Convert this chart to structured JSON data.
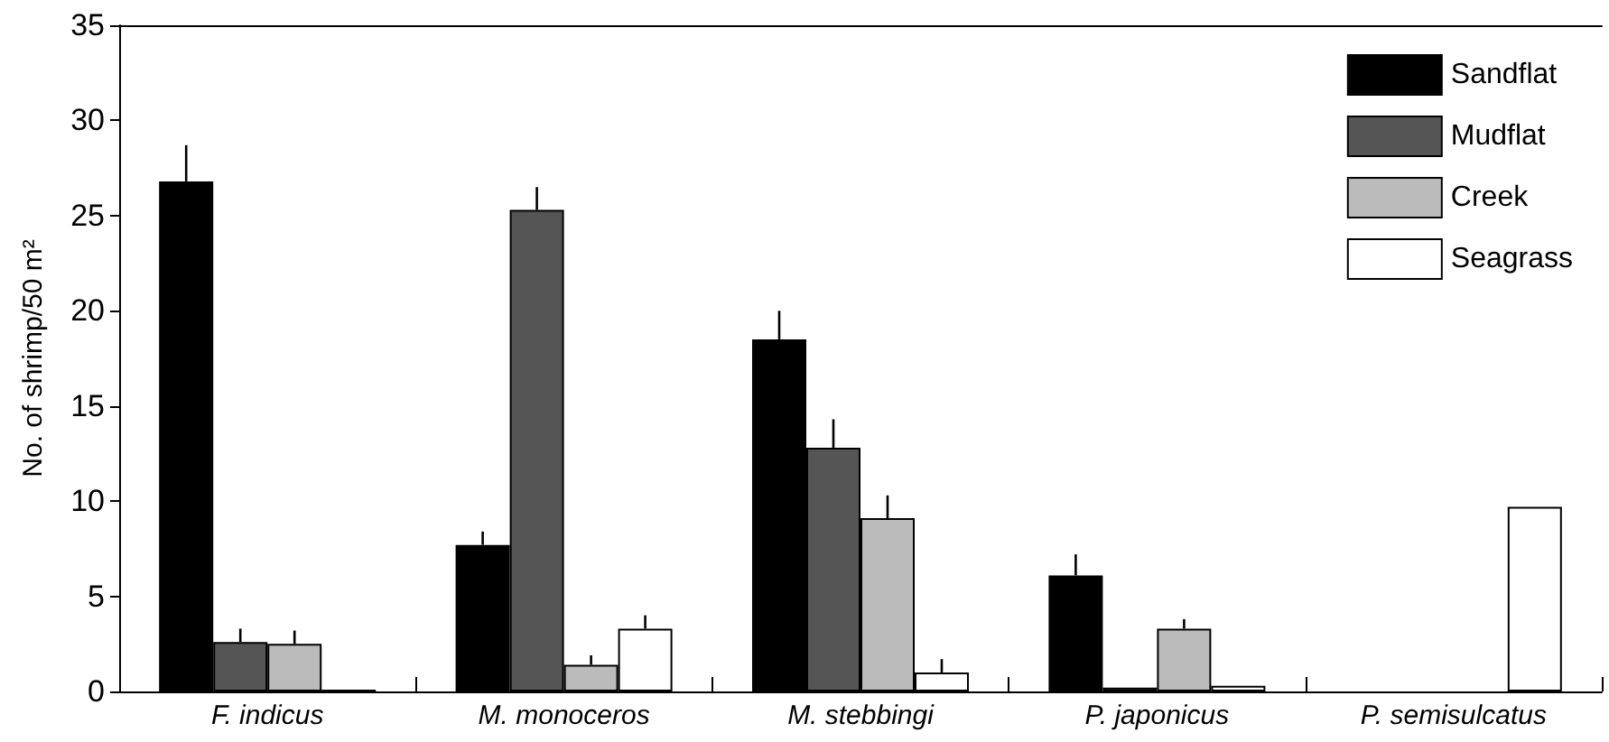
{
  "chart_data": {
    "type": "bar",
    "ylabel": "No. of shrimp/50 m²",
    "categories": [
      "F. indicus",
      "M. monoceros",
      "M. stebbingi",
      "P. japonicus",
      "P. semisulcatus"
    ],
    "series": [
      {
        "name": "Sandflat",
        "color": "#000000",
        "values": [
          26.8,
          7.7,
          18.5,
          6.1,
          0
        ],
        "errors": [
          [
            26.8,
            28.7
          ],
          [
            7.7,
            8.4
          ],
          [
            18.5,
            20.0
          ],
          [
            6.1,
            7.2
          ],
          null
        ]
      },
      {
        "name": "Mudflat",
        "color": "#555555",
        "values": [
          2.6,
          25.3,
          12.8,
          0.2,
          0
        ],
        "errors": [
          [
            2.6,
            3.3
          ],
          [
            25.3,
            26.5
          ],
          [
            12.8,
            14.3
          ],
          null,
          null
        ]
      },
      {
        "name": "Creek",
        "color": "#bbbbbb",
        "values": [
          2.5,
          1.4,
          9.1,
          3.3,
          0
        ],
        "errors": [
          [
            2.5,
            3.2
          ],
          [
            1.4,
            1.9
          ],
          [
            9.1,
            10.3
          ],
          [
            3.3,
            3.8
          ],
          null
        ]
      },
      {
        "name": "Seagrass",
        "color": "#ffffff",
        "values": [
          0.1,
          3.3,
          1.0,
          0.3,
          9.7
        ],
        "errors": [
          null,
          [
            3.3,
            4.0
          ],
          [
            1.0,
            1.7
          ],
          null,
          null
        ]
      }
    ],
    "ylim": [
      0,
      35
    ],
    "yticks": [
      0,
      5,
      10,
      15,
      20,
      25,
      30,
      35
    ],
    "grid": false,
    "legend": "top right"
  }
}
